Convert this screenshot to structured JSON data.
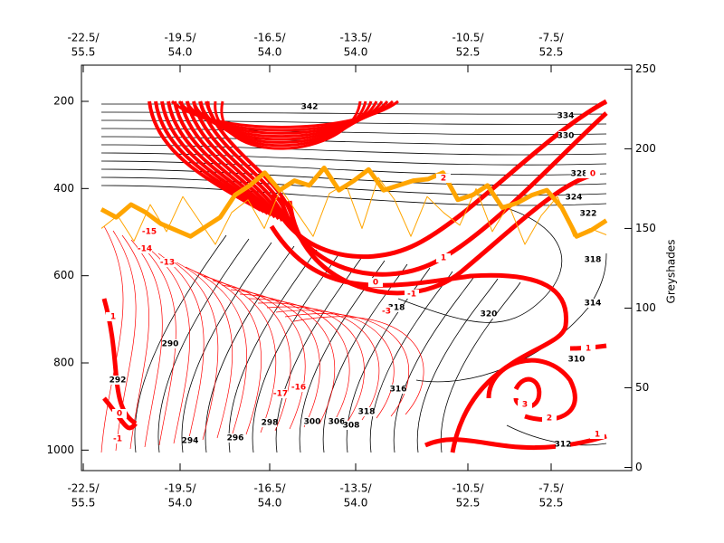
{
  "chart_data": {
    "type": "cross-section",
    "y2_label": "Greyshades",
    "ylim": [
      1047,
      117
    ],
    "yticks": [
      200,
      400,
      600,
      800,
      1000
    ],
    "y2lim": [
      -2,
      252.5
    ],
    "y2ticks": [
      0,
      50,
      100,
      150,
      200,
      250
    ],
    "x_labels": [
      [
        "-22.5/",
        "55.5"
      ],
      [
        "-19.5/",
        "54.0"
      ],
      [
        "-16.5/",
        "54.0"
      ],
      [
        "-13.5/",
        "54.0"
      ],
      [
        "-10.5/",
        "52.5"
      ],
      [
        "-7.5/",
        "52.5"
      ]
    ],
    "series": [
      {
        "color": "#ffa500",
        "axis": "y2",
        "width": 5,
        "values": [
          162,
          157,
          165,
          160,
          153,
          149,
          145,
          151,
          157,
          171,
          177,
          185,
          174,
          180,
          177,
          188,
          174,
          180,
          187,
          174,
          177,
          180,
          181,
          185,
          168,
          171,
          177,
          163,
          166,
          171,
          174,
          163,
          145,
          149,
          155
        ]
      },
      {
        "color": "#ffa500",
        "axis": "y2",
        "width": 1,
        "values": [
          150,
          158,
          142,
          165,
          148,
          170,
          155,
          140,
          160,
          168,
          150,
          175,
          160,
          145,
          172,
          178,
          150,
          182,
          168,
          145,
          170,
          160,
          152,
          175,
          148,
          165,
          140,
          158,
          170,
          145,
          150,
          146
        ]
      }
    ],
    "contours": [
      {
        "color": "#000000",
        "labels": [
          342,
          334,
          330,
          328,
          324,
          322,
          318,
          314,
          310,
          312,
          320,
          290,
          292,
          294,
          296,
          298,
          300,
          306,
          308,
          318,
          316,
          318
        ]
      },
      {
        "color": "#ff0000",
        "labels": [
          1,
          2,
          3,
          1,
          0,
          -1,
          -3,
          1,
          2,
          0,
          -13,
          -14,
          -15,
          -16,
          -17,
          0,
          -1,
          1
        ]
      }
    ]
  }
}
